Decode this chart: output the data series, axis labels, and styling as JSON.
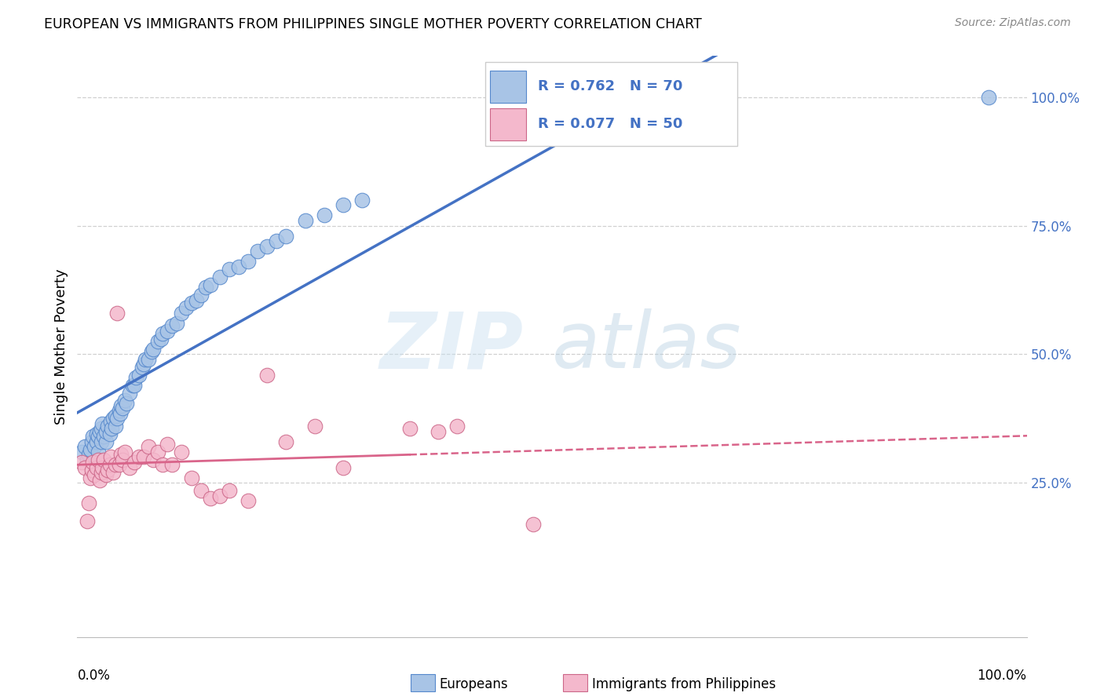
{
  "title": "EUROPEAN VS IMMIGRANTS FROM PHILIPPINES SINGLE MOTHER POVERTY CORRELATION CHART",
  "source": "Source: ZipAtlas.com",
  "ylabel": "Single Mother Poverty",
  "legend_r_blue": "R = 0.762",
  "legend_n_blue": "N = 70",
  "legend_r_pink": "R = 0.077",
  "legend_n_pink": "N = 50",
  "legend_label_blue": "Europeans",
  "legend_label_pink": "Immigrants from Philippines",
  "watermark_zip": "ZIP",
  "watermark_atlas": "atlas",
  "blue_marker_color": "#a8c4e6",
  "blue_line_color": "#4472c4",
  "blue_edge_color": "#5588cc",
  "pink_marker_color": "#f4b8cc",
  "pink_line_color": "#d9648a",
  "pink_edge_color": "#cc6688",
  "right_label_color": "#4472c4",
  "grid_color": "#d0d0d0",
  "background_color": "#ffffff",
  "xlim": [
    0.0,
    1.0
  ],
  "ylim": [
    -0.05,
    1.08
  ],
  "blue_x": [
    0.005,
    0.008,
    0.01,
    0.012,
    0.014,
    0.015,
    0.016,
    0.018,
    0.02,
    0.02,
    0.022,
    0.022,
    0.024,
    0.025,
    0.025,
    0.026,
    0.028,
    0.03,
    0.03,
    0.032,
    0.034,
    0.035,
    0.036,
    0.038,
    0.04,
    0.04,
    0.042,
    0.044,
    0.045,
    0.046,
    0.048,
    0.05,
    0.052,
    0.055,
    0.058,
    0.06,
    0.062,
    0.065,
    0.068,
    0.07,
    0.072,
    0.075,
    0.078,
    0.08,
    0.085,
    0.088,
    0.09,
    0.095,
    0.1,
    0.105,
    0.11,
    0.115,
    0.12,
    0.125,
    0.13,
    0.135,
    0.14,
    0.15,
    0.16,
    0.17,
    0.18,
    0.19,
    0.2,
    0.21,
    0.22,
    0.24,
    0.26,
    0.28,
    0.3,
    0.96
  ],
  "blue_y": [
    0.31,
    0.32,
    0.295,
    0.305,
    0.315,
    0.33,
    0.34,
    0.32,
    0.33,
    0.345,
    0.31,
    0.34,
    0.35,
    0.33,
    0.355,
    0.365,
    0.34,
    0.33,
    0.35,
    0.36,
    0.345,
    0.37,
    0.355,
    0.375,
    0.36,
    0.38,
    0.375,
    0.39,
    0.385,
    0.4,
    0.395,
    0.41,
    0.405,
    0.425,
    0.44,
    0.44,
    0.455,
    0.46,
    0.475,
    0.48,
    0.49,
    0.49,
    0.505,
    0.51,
    0.525,
    0.53,
    0.54,
    0.545,
    0.555,
    0.56,
    0.58,
    0.59,
    0.6,
    0.605,
    0.615,
    0.63,
    0.635,
    0.65,
    0.665,
    0.67,
    0.68,
    0.7,
    0.71,
    0.72,
    0.73,
    0.76,
    0.77,
    0.79,
    0.8,
    1.0
  ],
  "pink_x": [
    0.005,
    0.008,
    0.01,
    0.012,
    0.014,
    0.015,
    0.016,
    0.018,
    0.02,
    0.022,
    0.024,
    0.025,
    0.026,
    0.028,
    0.03,
    0.032,
    0.034,
    0.035,
    0.038,
    0.04,
    0.042,
    0.044,
    0.046,
    0.048,
    0.05,
    0.055,
    0.06,
    0.065,
    0.07,
    0.075,
    0.08,
    0.085,
    0.09,
    0.095,
    0.1,
    0.11,
    0.12,
    0.13,
    0.14,
    0.15,
    0.16,
    0.18,
    0.2,
    0.22,
    0.25,
    0.28,
    0.35,
    0.38,
    0.4,
    0.48
  ],
  "pink_y": [
    0.29,
    0.28,
    0.175,
    0.21,
    0.26,
    0.275,
    0.29,
    0.265,
    0.28,
    0.295,
    0.255,
    0.27,
    0.28,
    0.295,
    0.265,
    0.275,
    0.285,
    0.3,
    0.27,
    0.285,
    0.58,
    0.285,
    0.305,
    0.295,
    0.31,
    0.28,
    0.29,
    0.3,
    0.3,
    0.32,
    0.295,
    0.31,
    0.285,
    0.325,
    0.285,
    0.31,
    0.26,
    0.235,
    0.22,
    0.225,
    0.235,
    0.215,
    0.46,
    0.33,
    0.36,
    0.28,
    0.355,
    0.35,
    0.36,
    0.17
  ]
}
